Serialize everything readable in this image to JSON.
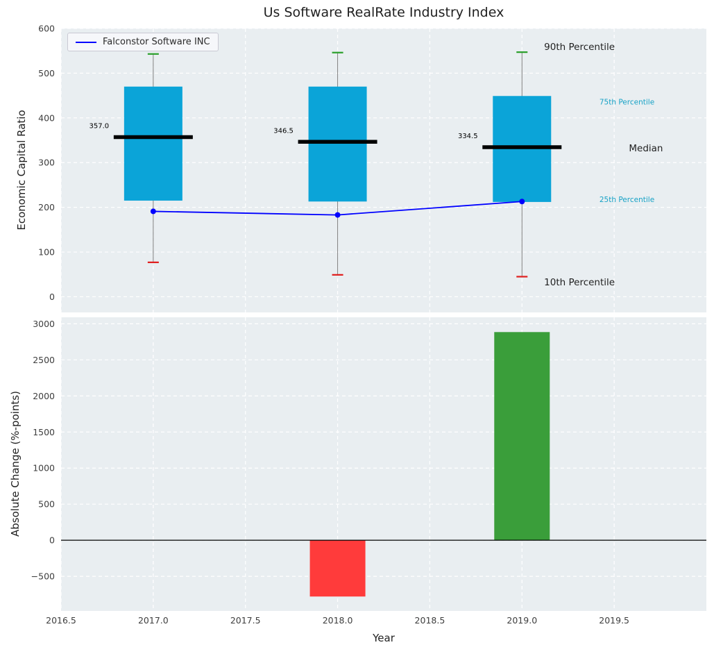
{
  "title": "Us Software RealRate Industry Index",
  "legend": {
    "label": "Falconstor Software INC"
  },
  "colors": {
    "plot_bg": "#e9eef1",
    "grid": "#ffffff",
    "box_fill": "#0ba4d8",
    "median": "#000000",
    "whisker": "#808080",
    "cap_top": "#2ca02c",
    "cap_bottom": "#e02020",
    "series_line": "#0000ff",
    "bar_positive": "#3a9e3a",
    "bar_negative": "#ff3b3b",
    "annotation_teal": "#17a2c6",
    "text": "#1f1f1f",
    "tick_text": "#3d3d3d"
  },
  "chart_data": [
    {
      "type": "box",
      "title": "Us Software RealRate Industry Index",
      "ylabel": "Economic Capital Ratio",
      "ylim": [
        -35,
        600
      ],
      "yticks": [
        0,
        100,
        200,
        300,
        400,
        500,
        600
      ],
      "xlim": [
        2016.5,
        2020.0
      ],
      "years": [
        2017,
        2018,
        2019
      ],
      "percentiles": [
        {
          "year": 2017,
          "p10": 77,
          "p25": 215,
          "median": 357.0,
          "p75": 470,
          "p90": 543
        },
        {
          "year": 2018,
          "p10": 49,
          "p25": 213,
          "median": 346.5,
          "p75": 470,
          "p90": 546
        },
        {
          "year": 2019,
          "p10": 45,
          "p25": 212,
          "median": 334.5,
          "p75": 449,
          "p90": 547
        }
      ],
      "median_labels": [
        "357.0",
        "346.5",
        "334.5"
      ],
      "series": [
        {
          "name": "Falconstor Software INC",
          "x": [
            2017,
            2018,
            2019
          ],
          "y": [
            191,
            183,
            213
          ]
        }
      ],
      "annotations": [
        {
          "text": "90th Percentile",
          "x": 2019.12,
          "y": 560,
          "size": 13.5,
          "color": "black"
        },
        {
          "text": "75th Percentile",
          "x": 2019.42,
          "y": 438,
          "size": 10.5,
          "color": "teal"
        },
        {
          "text": "Median",
          "x": 2019.58,
          "y": 333,
          "size": 13.5,
          "color": "black"
        },
        {
          "text": "25th Percentile",
          "x": 2019.42,
          "y": 220,
          "size": 10.5,
          "color": "teal"
        },
        {
          "text": "10th Percentile",
          "x": 2019.12,
          "y": 33,
          "size": 13.5,
          "color": "black"
        }
      ],
      "legend_entries": [
        "Falconstor Software INC"
      ]
    },
    {
      "type": "bar",
      "ylabel": "Absolute Change (%-points)",
      "xlabel": "Year",
      "ylim": [
        -980,
        3090
      ],
      "yticks": [
        -500,
        0,
        500,
        1000,
        1500,
        2000,
        2500,
        3000
      ],
      "xticks": [
        2016.5,
        2017.0,
        2017.5,
        2018.0,
        2018.5,
        2019.0,
        2019.5
      ],
      "xtick_labels": [
        "2016.5",
        "2017.0",
        "2017.5",
        "2018.0",
        "2018.5",
        "2019.0",
        "2019.5"
      ],
      "bars": [
        {
          "x": 2018,
          "value": -780
        },
        {
          "x": 2019,
          "value": 2885
        }
      ]
    }
  ]
}
